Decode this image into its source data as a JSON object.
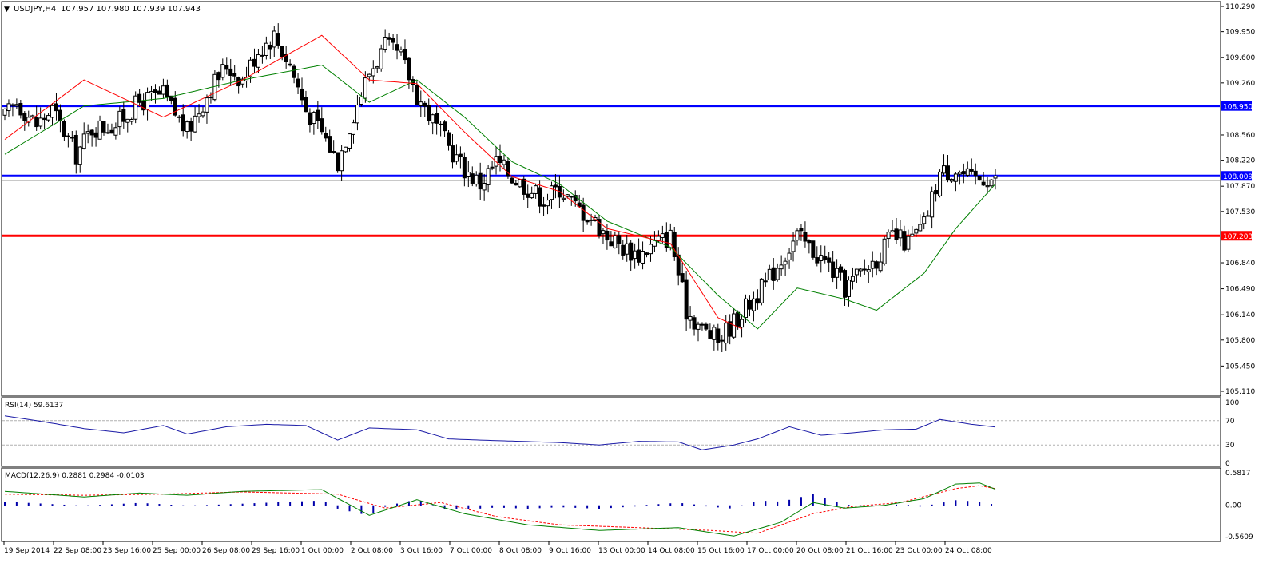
{
  "header": {
    "symbol_label": "USDJPY,H4",
    "ohlc": "107.957 107.980 107.939 107.943"
  },
  "colors": {
    "background": "#ffffff",
    "frame": "#000000",
    "bull_candle": "#ffffff",
    "bear_candle": "#000000",
    "level_blue": "#0000ff",
    "level_red": "#ff0000",
    "ma_fast": "#ff0000",
    "ma_slow": "#008000",
    "ma_highlight": "#ffff00",
    "rsi_line": "#1a1aa6",
    "macd_hist": "#0000aa",
    "macd_signal": "#ff0000",
    "macd_main": "#008000"
  },
  "main_axis": {
    "labels": [
      "110.290",
      "109.950",
      "109.600",
      "109.260",
      "108.560",
      "108.220",
      "107.870",
      "107.530",
      "106.840",
      "106.490",
      "106.140",
      "105.800",
      "105.450",
      "105.110"
    ],
    "ylim": [
      105.11,
      110.29
    ]
  },
  "levels": [
    {
      "name": "resistance-upper",
      "value": 108.95,
      "label": "108.950",
      "color": "#0000ff"
    },
    {
      "name": "resistance-lower",
      "value": 108.009,
      "label": "108.009",
      "color": "#0000ff"
    },
    {
      "name": "support",
      "value": 107.203,
      "label": "107.203",
      "color": "#ff0000"
    }
  ],
  "current_price": {
    "value": 107.943,
    "label": "107.943"
  },
  "rsi": {
    "label": "RSI(14) 59.6137",
    "axis_labels": [
      "100",
      "70",
      "30",
      "0"
    ],
    "levels": [
      70,
      30
    ],
    "ylim": [
      0,
      100
    ]
  },
  "macd": {
    "label": "MACD(12,26,9) 0.2881 0.2984 -0.0103",
    "axis_labels": [
      "0.5817",
      "0.00",
      "-0.5609"
    ],
    "ylim": [
      -0.5609,
      0.5817
    ]
  },
  "time_axis": {
    "labels": [
      "19 Sep 2014",
      "22 Sep 08:00",
      "23 Sep 16:00",
      "25 Sep 00:00",
      "26 Sep 08:00",
      "29 Sep 16:00",
      "1 Oct 00:00",
      "2 Oct 08:00",
      "3 Oct 16:00",
      "7 Oct 00:00",
      "8 Oct 08:00",
      "9 Oct 16:00",
      "13 Oct 00:00",
      "14 Oct 08:00",
      "15 Oct 16:00",
      "17 Oct 00:00",
      "20 Oct 08:00",
      "21 Oct 16:00",
      "23 Oct 00:00",
      "24 Oct 08:00"
    ]
  },
  "chart_data": {
    "type": "candlestick",
    "symbol": "USDJPY",
    "timeframe": "H4",
    "ylim": [
      105.11,
      110.29
    ],
    "anchors": [
      [
        0,
        108.8
      ],
      [
        3,
        109.0
      ],
      [
        8,
        108.7
      ],
      [
        12,
        108.9
      ],
      [
        18,
        108.3
      ],
      [
        22,
        108.65
      ],
      [
        28,
        108.7
      ],
      [
        34,
        109.0
      ],
      [
        40,
        109.1
      ],
      [
        46,
        108.6
      ],
      [
        52,
        109.2
      ],
      [
        56,
        109.5
      ],
      [
        60,
        109.3
      ],
      [
        64,
        109.7
      ],
      [
        68,
        109.9
      ],
      [
        72,
        109.5
      ],
      [
        76,
        108.9
      ],
      [
        80,
        108.6
      ],
      [
        84,
        108.2
      ],
      [
        88,
        108.85
      ],
      [
        92,
        109.4
      ],
      [
        96,
        109.75
      ],
      [
        100,
        109.6
      ],
      [
        104,
        109.1
      ],
      [
        108,
        108.75
      ],
      [
        112,
        108.4
      ],
      [
        116,
        108.1
      ],
      [
        120,
        107.9
      ],
      [
        124,
        108.2
      ],
      [
        128,
        108.0
      ],
      [
        132,
        107.85
      ],
      [
        136,
        107.7
      ],
      [
        140,
        107.85
      ],
      [
        144,
        107.6
      ],
      [
        148,
        107.45
      ],
      [
        152,
        107.2
      ],
      [
        156,
        107.05
      ],
      [
        160,
        106.95
      ],
      [
        164,
        107.1
      ],
      [
        168,
        107.2
      ],
      [
        172,
        106.2
      ],
      [
        176,
        105.95
      ],
      [
        180,
        105.8
      ],
      [
        184,
        106.05
      ],
      [
        188,
        106.3
      ],
      [
        192,
        106.55
      ],
      [
        196,
        106.9
      ],
      [
        200,
        107.2
      ],
      [
        204,
        107.0
      ],
      [
        208,
        106.8
      ],
      [
        212,
        106.5
      ],
      [
        216,
        106.7
      ],
      [
        220,
        106.9
      ],
      [
        224,
        107.2
      ],
      [
        228,
        107.1
      ],
      [
        232,
        107.35
      ],
      [
        236,
        108.05
      ],
      [
        240,
        108.1
      ],
      [
        244,
        107.95
      ],
      [
        248,
        108.0
      ],
      [
        250,
        107.94
      ]
    ],
    "ma_fast_period_anchors": [
      [
        0,
        108.5
      ],
      [
        20,
        109.3
      ],
      [
        40,
        108.8
      ],
      [
        60,
        109.3
      ],
      [
        80,
        109.9
      ],
      [
        92,
        109.3
      ],
      [
        104,
        109.25
      ],
      [
        116,
        108.6
      ],
      [
        128,
        108.0
      ],
      [
        140,
        107.8
      ],
      [
        152,
        107.3
      ],
      [
        168,
        107.1
      ],
      [
        180,
        106.1
      ],
      [
        186,
        105.95
      ]
    ],
    "ma_slow_period_anchors": [
      [
        0,
        108.3
      ],
      [
        20,
        108.95
      ],
      [
        40,
        109.05
      ],
      [
        60,
        109.3
      ],
      [
        80,
        109.5
      ],
      [
        92,
        109.0
      ],
      [
        104,
        109.3
      ],
      [
        116,
        108.8
      ],
      [
        128,
        108.2
      ],
      [
        140,
        107.9
      ],
      [
        152,
        107.4
      ],
      [
        168,
        107.05
      ],
      [
        180,
        106.4
      ],
      [
        190,
        105.95
      ],
      [
        200,
        106.5
      ],
      [
        212,
        106.35
      ],
      [
        220,
        106.2
      ],
      [
        232,
        106.7
      ],
      [
        240,
        107.3
      ],
      [
        250,
        107.9
      ]
    ],
    "rsi_anchors": [
      [
        0,
        78
      ],
      [
        10,
        68
      ],
      [
        20,
        57
      ],
      [
        30,
        50
      ],
      [
        40,
        62
      ],
      [
        46,
        48
      ],
      [
        56,
        60
      ],
      [
        66,
        64
      ],
      [
        76,
        62
      ],
      [
        84,
        38
      ],
      [
        92,
        58
      ],
      [
        104,
        55
      ],
      [
        112,
        40
      ],
      [
        120,
        38
      ],
      [
        130,
        36
      ],
      [
        140,
        34
      ],
      [
        150,
        30
      ],
      [
        160,
        36
      ],
      [
        170,
        35
      ],
      [
        176,
        22
      ],
      [
        184,
        30
      ],
      [
        190,
        40
      ],
      [
        198,
        60
      ],
      [
        206,
        46
      ],
      [
        214,
        50
      ],
      [
        222,
        55
      ],
      [
        230,
        56
      ],
      [
        236,
        72
      ],
      [
        244,
        64
      ],
      [
        250,
        59.6
      ]
    ],
    "macd_main_anchors": [
      [
        0,
        0.25
      ],
      [
        20,
        0.15
      ],
      [
        34,
        0.22
      ],
      [
        46,
        0.18
      ],
      [
        60,
        0.25
      ],
      [
        80,
        0.28
      ],
      [
        92,
        -0.18
      ],
      [
        104,
        0.1
      ],
      [
        116,
        -0.15
      ],
      [
        132,
        -0.35
      ],
      [
        150,
        -0.45
      ],
      [
        170,
        -0.4
      ],
      [
        184,
        -0.55
      ],
      [
        196,
        -0.3
      ],
      [
        204,
        0.05
      ],
      [
        212,
        -0.05
      ],
      [
        222,
        0.0
      ],
      [
        232,
        0.12
      ],
      [
        240,
        0.38
      ],
      [
        246,
        0.4
      ],
      [
        250,
        0.2881
      ]
    ],
    "macd_signal_anchors": [
      [
        0,
        0.2
      ],
      [
        20,
        0.18
      ],
      [
        40,
        0.2
      ],
      [
        60,
        0.24
      ],
      [
        84,
        0.2
      ],
      [
        96,
        -0.05
      ],
      [
        110,
        0.05
      ],
      [
        124,
        -0.2
      ],
      [
        140,
        -0.35
      ],
      [
        160,
        -0.4
      ],
      [
        178,
        -0.45
      ],
      [
        190,
        -0.5
      ],
      [
        204,
        -0.15
      ],
      [
        214,
        -0.02
      ],
      [
        226,
        0.05
      ],
      [
        240,
        0.3
      ],
      [
        246,
        0.35
      ],
      [
        250,
        0.2984
      ]
    ],
    "count": 251
  }
}
